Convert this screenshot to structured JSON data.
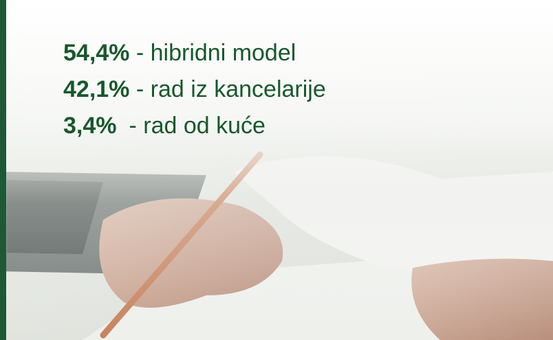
{
  "items": [
    {
      "value": "54,4%",
      "label": "- hibridni model"
    },
    {
      "value": "42,1%",
      "label": "- rad iz kancelarije"
    },
    {
      "value": "3,4%",
      "label": "- rad od kuće"
    }
  ]
}
